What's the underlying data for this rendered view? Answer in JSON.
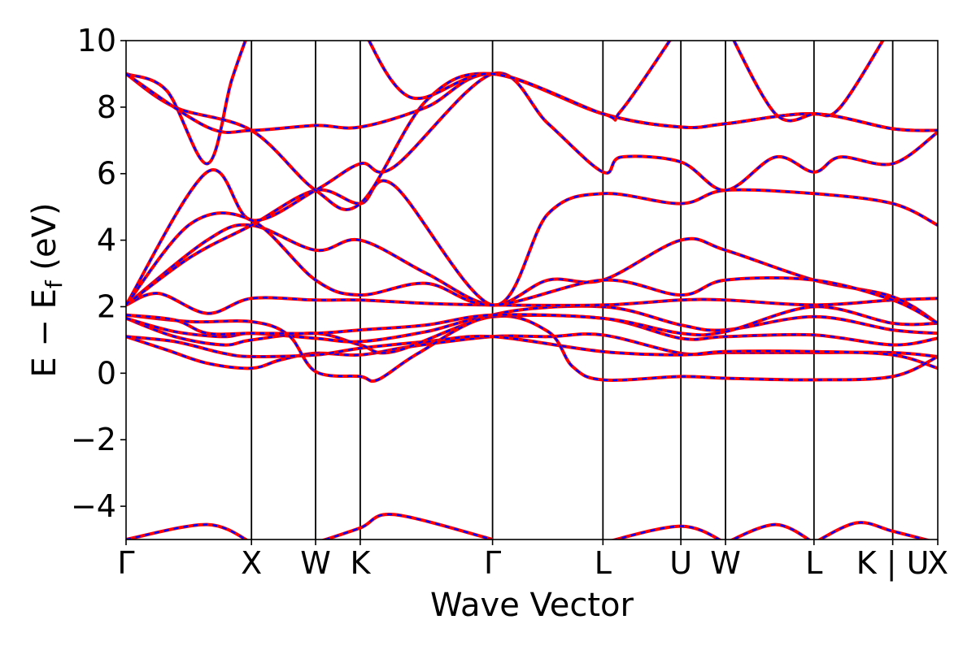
{
  "chart_data": {
    "type": "line",
    "title": "",
    "xlabel": "Wave Vector",
    "ylabel": "E − E",
    "ylabel_subscript": "f",
    "ylabel_unit": "(eV)",
    "x_range": [
      0,
      1
    ],
    "ylim": [
      -5,
      10
    ],
    "y_ticks": [
      -4,
      -2,
      0,
      2,
      4,
      6,
      8,
      10
    ],
    "y_tick_labels": [
      "−4",
      "−2",
      "0",
      "2",
      "4",
      "6",
      "8",
      "10"
    ],
    "kpoints": [
      {
        "label": "Γ",
        "x": 0.0
      },
      {
        "label": "X",
        "x": 0.1545
      },
      {
        "label": "W",
        "x": 0.2335
      },
      {
        "label": "K",
        "x": 0.2885
      },
      {
        "label": "Γ",
        "x": 0.4515
      },
      {
        "label": "L",
        "x": 0.5875
      },
      {
        "label": "U",
        "x": 0.6835
      },
      {
        "label": "W",
        "x": 0.7385
      },
      {
        "label": "L",
        "x": 0.8475
      },
      {
        "label": "K | U",
        "x": 0.9445
      },
      {
        "label": "X",
        "x": 1.0
      }
    ],
    "legend": "none",
    "grid": false,
    "series_style": {
      "solid_color": "#ff0000",
      "dashed_color": "#0000ff"
    },
    "bands": [
      [
        [
          0,
          1.1
        ],
        [
          0.05,
          0.7
        ],
        [
          0.1,
          0.3
        ],
        [
          0.1545,
          0.15
        ],
        [
          0.19,
          0.4
        ],
        [
          0.2335,
          0.6
        ],
        [
          0.2885,
          0.55
        ],
        [
          0.35,
          0.8
        ],
        [
          0.4515,
          1.1
        ],
        [
          0.52,
          1.1
        ],
        [
          0.5875,
          1.15
        ],
        [
          0.6835,
          0.6
        ],
        [
          0.7385,
          0.62
        ],
        [
          0.8475,
          0.62
        ],
        [
          0.9445,
          0.62
        ],
        [
          1.0,
          0.5
        ]
      ],
      [
        [
          0,
          1.1
        ],
        [
          0.06,
          0.95
        ],
        [
          0.12,
          0.6
        ],
        [
          0.1545,
          0.5
        ],
        [
          0.2335,
          0.55
        ],
        [
          0.2885,
          0.75
        ],
        [
          0.37,
          0.95
        ],
        [
          0.4515,
          1.1
        ],
        [
          0.5875,
          0.65
        ],
        [
          0.6835,
          0.55
        ],
        [
          0.7385,
          0.65
        ],
        [
          0.8475,
          0.65
        ],
        [
          0.9445,
          0.55
        ],
        [
          1.0,
          0.15
        ]
      ],
      [
        [
          0,
          1.65
        ],
        [
          0.06,
          1.1
        ],
        [
          0.12,
          0.85
        ],
        [
          0.1545,
          1.0
        ],
        [
          0.2335,
          1.2
        ],
        [
          0.2885,
          0.85
        ],
        [
          0.33,
          0.65
        ],
        [
          0.4515,
          1.7
        ],
        [
          0.52,
          1.25
        ],
        [
          0.55,
          0.2
        ],
        [
          0.5875,
          -0.2
        ],
        [
          0.6835,
          -0.1
        ],
        [
          0.7385,
          -0.15
        ],
        [
          0.8475,
          -0.2
        ],
        [
          0.9445,
          -0.1
        ],
        [
          1.0,
          0.5
        ]
      ],
      [
        [
          0,
          1.65
        ],
        [
          0.06,
          1.25
        ],
        [
          0.12,
          1.1
        ],
        [
          0.1545,
          1.2
        ],
        [
          0.2335,
          1.05
        ],
        [
          0.2885,
          0.95
        ],
        [
          0.37,
          1.25
        ],
        [
          0.4515,
          1.7
        ],
        [
          0.5875,
          1.65
        ],
        [
          0.6835,
          1.05
        ],
        [
          0.7385,
          1.1
        ],
        [
          0.8475,
          1.15
        ],
        [
          0.9445,
          0.85
        ],
        [
          1.0,
          1.05
        ]
      ],
      [
        [
          0,
          1.75
        ],
        [
          0.08,
          1.55
        ],
        [
          0.1545,
          1.55
        ],
        [
          0.2,
          1.15
        ],
        [
          0.2335,
          0.05
        ],
        [
          0.2885,
          -0.1
        ],
        [
          0.31,
          -0.2
        ],
        [
          0.36,
          0.6
        ],
        [
          0.4515,
          1.75
        ],
        [
          0.5875,
          2.0
        ],
        [
          0.6835,
          1.45
        ],
        [
          0.7385,
          1.3
        ],
        [
          0.8475,
          1.7
        ],
        [
          0.9445,
          1.3
        ],
        [
          1.0,
          1.2
        ]
      ],
      [
        [
          0,
          1.75
        ],
        [
          0.06,
          1.6
        ],
        [
          0.1,
          1.2
        ],
        [
          0.1545,
          1.2
        ],
        [
          0.2335,
          1.2
        ],
        [
          0.2885,
          1.3
        ],
        [
          0.37,
          1.45
        ],
        [
          0.4515,
          1.75
        ],
        [
          0.5875,
          1.65
        ],
        [
          0.6835,
          1.2
        ],
        [
          0.7385,
          1.25
        ],
        [
          0.8475,
          2.0
        ],
        [
          0.9445,
          1.5
        ],
        [
          1.0,
          1.5
        ]
      ],
      [
        [
          0,
          2.05
        ],
        [
          0.04,
          2.4
        ],
        [
          0.1,
          1.8
        ],
        [
          0.1545,
          2.25
        ],
        [
          0.2335,
          2.2
        ],
        [
          0.2885,
          2.2
        ],
        [
          0.37,
          2.1
        ],
        [
          0.4515,
          2.05
        ],
        [
          0.5875,
          2.05
        ],
        [
          0.6835,
          2.2
        ],
        [
          0.7385,
          2.2
        ],
        [
          0.8475,
          2.05
        ],
        [
          0.9445,
          2.2
        ],
        [
          1.0,
          2.25
        ]
      ],
      [
        [
          0,
          2.05
        ],
        [
          0.1,
          4.0
        ],
        [
          0.1545,
          4.45
        ],
        [
          0.2335,
          3.7
        ],
        [
          0.2885,
          4.0
        ],
        [
          0.37,
          3.0
        ],
        [
          0.4515,
          2.05
        ],
        [
          0.52,
          2.8
        ],
        [
          0.5875,
          2.8
        ],
        [
          0.6835,
          4.0
        ],
        [
          0.7385,
          3.7
        ],
        [
          0.8475,
          2.8
        ],
        [
          0.9445,
          2.3
        ],
        [
          1.0,
          1.5
        ]
      ],
      [
        [
          0,
          2.05
        ],
        [
          0.08,
          3.5
        ],
        [
          0.1545,
          4.45
        ],
        [
          0.2335,
          5.5
        ],
        [
          0.2885,
          5.1
        ],
        [
          0.33,
          5.65
        ],
        [
          0.4515,
          2.05
        ],
        [
          0.52,
          4.8
        ],
        [
          0.5875,
          5.4
        ],
        [
          0.6835,
          5.1
        ],
        [
          0.7385,
          5.5
        ],
        [
          0.8475,
          5.4
        ],
        [
          0.9445,
          5.1
        ],
        [
          1.0,
          4.45
        ]
      ],
      [
        [
          0,
          2.05
        ],
        [
          0.1,
          6.05
        ],
        [
          0.1545,
          4.6
        ],
        [
          0.2335,
          5.5
        ],
        [
          0.2885,
          6.3
        ],
        [
          0.33,
          6.2
        ],
        [
          0.4515,
          9.0
        ],
        [
          0.52,
          7.5
        ],
        [
          0.5875,
          6.05
        ],
        [
          0.61,
          6.5
        ],
        [
          0.6835,
          6.35
        ],
        [
          0.7385,
          5.5
        ],
        [
          0.8,
          6.5
        ],
        [
          0.8475,
          6.05
        ],
        [
          0.88,
          6.5
        ],
        [
          0.9445,
          6.3
        ],
        [
          1.0,
          7.25
        ]
      ],
      [
        [
          0,
          2.05
        ],
        [
          0.08,
          4.5
        ],
        [
          0.1545,
          4.6
        ],
        [
          0.2335,
          2.8
        ],
        [
          0.2885,
          2.35
        ],
        [
          0.37,
          2.7
        ],
        [
          0.4515,
          2.05
        ],
        [
          0.5875,
          2.8
        ],
        [
          0.6835,
          2.35
        ],
        [
          0.7385,
          2.8
        ],
        [
          0.8475,
          2.8
        ],
        [
          0.9445,
          2.2
        ],
        [
          1.0,
          1.5
        ]
      ],
      [
        [
          0,
          9.0
        ],
        [
          0.05,
          8.5
        ],
        [
          0.1,
          6.3
        ],
        [
          0.13,
          8.8
        ],
        [
          0.1545,
          10.5
        ]
      ],
      [
        [
          0,
          9.0
        ],
        [
          0.06,
          8.0
        ],
        [
          0.1545,
          7.3
        ],
        [
          0.2335,
          5.5
        ],
        [
          0.2885,
          5.1
        ],
        [
          0.37,
          8.2
        ],
        [
          0.4515,
          9.0
        ],
        [
          0.5875,
          7.8
        ],
        [
          0.6835,
          7.4
        ],
        [
          0.7385,
          7.5
        ],
        [
          0.8475,
          7.8
        ],
        [
          0.9445,
          7.35
        ],
        [
          1.0,
          7.3
        ]
      ],
      [
        [
          0,
          9.0
        ],
        [
          0.1,
          7.4
        ],
        [
          0.1545,
          7.3
        ],
        [
          0.2335,
          7.45
        ],
        [
          0.2885,
          7.4
        ],
        [
          0.37,
          8.0
        ],
        [
          0.4515,
          9.0
        ],
        [
          0.5875,
          7.8
        ],
        [
          0.6835,
          7.4
        ],
        [
          0.7385,
          7.5
        ],
        [
          0.8475,
          7.8
        ],
        [
          0.9445,
          7.35
        ],
        [
          1.0,
          7.3
        ]
      ],
      [
        [
          0.2885,
          10.5
        ],
        [
          0.35,
          8.3
        ],
        [
          0.4515,
          9.0
        ],
        [
          0.5875,
          7.8
        ],
        [
          0.61,
          7.9
        ],
        [
          0.6835,
          10.5
        ]
      ],
      [
        [
          0.7385,
          10.5
        ],
        [
          0.8,
          7.8
        ],
        [
          0.8475,
          7.8
        ],
        [
          0.88,
          8.0
        ],
        [
          0.9445,
          10.5
        ]
      ],
      [
        [
          0,
          -5.0
        ],
        [
          0.1,
          -4.55
        ],
        [
          0.1545,
          -5.1
        ]
      ],
      [
        [
          0.2335,
          -5.1
        ],
        [
          0.2885,
          -4.65
        ],
        [
          0.33,
          -4.25
        ],
        [
          0.4515,
          -5.0
        ]
      ],
      [
        [
          0.5875,
          -5.1
        ],
        [
          0.6835,
          -4.6
        ],
        [
          0.7385,
          -5.1
        ]
      ],
      [
        [
          0.7385,
          -5.1
        ],
        [
          0.8,
          -4.55
        ],
        [
          0.8475,
          -5.1
        ]
      ],
      [
        [
          0.8475,
          -5.1
        ],
        [
          0.9,
          -4.5
        ],
        [
          0.9445,
          -4.75
        ],
        [
          1.0,
          -5.1
        ]
      ]
    ]
  }
}
